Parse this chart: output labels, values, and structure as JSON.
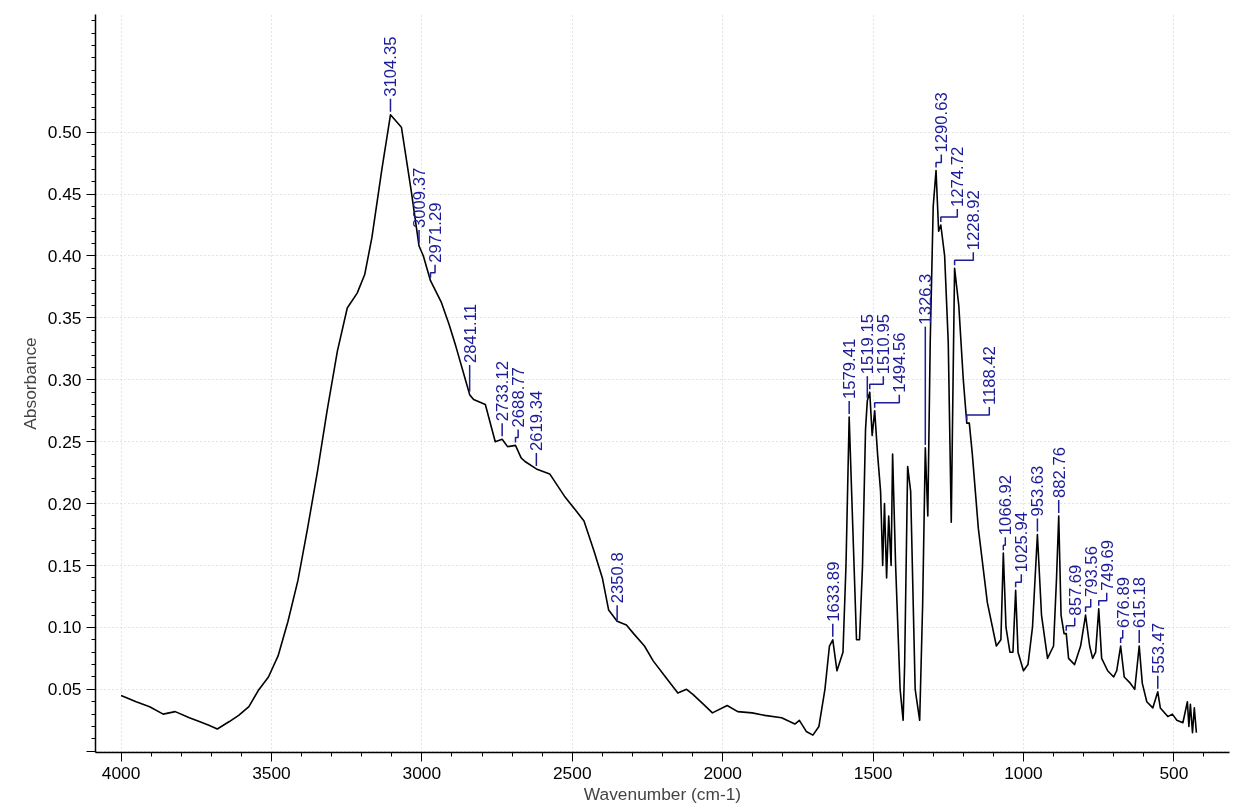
{
  "chart_data": {
    "type": "line",
    "xlabel": "Wavenumber (cm-1)",
    "ylabel": "Absorbance",
    "xlim": [
      4085,
      315
    ],
    "ylim": [
      -0.001,
      0.595
    ],
    "xticks": [
      4000,
      3500,
      3000,
      2500,
      2000,
      1500,
      1000,
      500
    ],
    "yticks": [
      {
        "value": 0,
        "label": null
      },
      {
        "value": 0.05,
        "label": "0.05"
      },
      {
        "value": 0.1,
        "label": "0.10"
      },
      {
        "value": 0.15,
        "label": "0.15"
      },
      {
        "value": 0.2,
        "label": "0.20"
      },
      {
        "value": 0.25,
        "label": "0.25"
      },
      {
        "value": 0.3,
        "label": "0.30"
      },
      {
        "value": 0.35,
        "label": "0.35"
      },
      {
        "value": 0.4,
        "label": "0.40"
      },
      {
        "value": 0.45,
        "label": "0.45"
      },
      {
        "value": 0.5,
        "label": "0.50"
      }
    ],
    "grid": true,
    "marker": "none",
    "line_style": "solid",
    "series": [
      {
        "color": "#000000",
        "x": [
          4000,
          3950,
          3905,
          3860,
          3820,
          3773,
          3740,
          3708,
          3680,
          3640,
          3609,
          3575,
          3544,
          3510,
          3478,
          3445,
          3412,
          3380,
          3347,
          3315,
          3281,
          3248,
          3215,
          3190,
          3166,
          3133,
          3104.35,
          3068,
          3035,
          3009.37,
          2995,
          2971.29,
          2963,
          2936,
          2910,
          2887,
          2854,
          2841.11,
          2828,
          2789,
          2756,
          2733.12,
          2715,
          2688.77,
          2670,
          2657,
          2619.34,
          2575,
          2526,
          2490,
          2461,
          2428,
          2400,
          2379,
          2350.8,
          2320,
          2296,
          2260,
          2231,
          2190,
          2149,
          2120,
          2099,
          2060,
          2034,
          1985,
          1950,
          1902,
          1860,
          1804,
          1760,
          1745,
          1722,
          1700,
          1680,
          1660,
          1645,
          1633.89,
          1620,
          1600,
          1590,
          1579.41,
          1570,
          1555,
          1545,
          1535,
          1525,
          1519.15,
          1510.95,
          1503,
          1494.56,
          1485,
          1475,
          1468,
          1462,
          1455,
          1448,
          1440,
          1435,
          1425,
          1410,
          1400,
          1395,
          1385,
          1375,
          1360,
          1345,
          1335,
          1326.3,
          1318,
          1310,
          1300,
          1290.63,
          1282,
          1274.72,
          1262,
          1250,
          1240,
          1234,
          1228.92,
          1215,
          1200,
          1188.42,
          1180,
          1170,
          1150,
          1120,
          1090,
          1075,
          1066.92,
          1058,
          1045,
          1035,
          1025.94,
          1018,
          1000,
          985,
          970,
          953.63,
          940,
          920,
          900,
          890,
          882.76,
          875,
          865,
          857.69,
          850,
          830,
          810,
          793.56,
          780,
          770,
          760,
          749.69,
          740,
          720,
          700,
          690,
          676.89,
          665,
          645,
          630,
          615.18,
          605,
          590,
          570,
          553.47,
          545,
          520,
          505,
          490,
          470,
          455,
          450,
          445,
          438,
          432,
          425
        ],
        "values": [
          0.045,
          0.04,
          0.036,
          0.03,
          0.032,
          0.027,
          0.024,
          0.021,
          0.018,
          0.024,
          0.029,
          0.036,
          0.049,
          0.06,
          0.077,
          0.105,
          0.138,
          0.18,
          0.226,
          0.275,
          0.323,
          0.358,
          0.37,
          0.385,
          0.415,
          0.47,
          0.514,
          0.504,
          0.452,
          0.408,
          0.4,
          0.38,
          0.376,
          0.363,
          0.345,
          0.327,
          0.299,
          0.288,
          0.284,
          0.28,
          0.25,
          0.252,
          0.246,
          0.247,
          0.237,
          0.234,
          0.228,
          0.224,
          0.206,
          0.195,
          0.186,
          0.162,
          0.14,
          0.114,
          0.105,
          0.102,
          0.095,
          0.085,
          0.073,
          0.06,
          0.047,
          0.05,
          0.046,
          0.037,
          0.031,
          0.037,
          0.032,
          0.031,
          0.029,
          0.027,
          0.022,
          0.025,
          0.016,
          0.013,
          0.02,
          0.05,
          0.085,
          0.09,
          0.065,
          0.08,
          0.15,
          0.27,
          0.2,
          0.09,
          0.09,
          0.15,
          0.26,
          0.283,
          0.29,
          0.255,
          0.275,
          0.24,
          0.21,
          0.15,
          0.2,
          0.14,
          0.19,
          0.15,
          0.24,
          0.15,
          0.05,
          0.025,
          0.07,
          0.23,
          0.21,
          0.05,
          0.025,
          0.12,
          0.245,
          0.19,
          0.33,
          0.44,
          0.469,
          0.42,
          0.425,
          0.4,
          0.33,
          0.185,
          0.3,
          0.39,
          0.36,
          0.3,
          0.265,
          0.265,
          0.24,
          0.18,
          0.12,
          0.085,
          0.09,
          0.16,
          0.1,
          0.08,
          0.08,
          0.13,
          0.08,
          0.065,
          0.07,
          0.1,
          0.175,
          0.11,
          0.075,
          0.085,
          0.14,
          0.19,
          0.11,
          0.095,
          0.095,
          0.075,
          0.07,
          0.085,
          0.11,
          0.085,
          0.075,
          0.08,
          0.115,
          0.075,
          0.065,
          0.06,
          0.065,
          0.085,
          0.06,
          0.055,
          0.05,
          0.085,
          0.055,
          0.04,
          0.035,
          0.048,
          0.035,
          0.028,
          0.03,
          0.025,
          0.023,
          0.04,
          0.02,
          0.038,
          0.015,
          0.035,
          0.015
        ]
      }
    ],
    "annotations": [
      {
        "text": "3104.35",
        "x": 3104.35,
        "y": 0.514
      },
      {
        "text": "3009.37",
        "x": 3009.37,
        "y": 0.408
      },
      {
        "text": "2971.29",
        "x": 2971.29,
        "y": 0.38
      },
      {
        "text": "2841.11",
        "x": 2841.11,
        "y": 0.288
      },
      {
        "text": "2733.12",
        "x": 2733.12,
        "y": 0.252
      },
      {
        "text": "2688.77",
        "x": 2688.77,
        "y": 0.247
      },
      {
        "text": "2619.34",
        "x": 2619.34,
        "y": 0.228
      },
      {
        "text": "2350.8",
        "x": 2350.8,
        "y": 0.102
      },
      {
        "text": "1633.89",
        "x": 1633.89,
        "y": 0.09
      },
      {
        "text": "1579.41",
        "x": 1579.41,
        "y": 0.27
      },
      {
        "text": "1519.15",
        "x": 1519.15,
        "y": 0.283
      },
      {
        "text": "1510.95",
        "x": 1510.95,
        "y": 0.29
      },
      {
        "text": "1494.56",
        "x": 1494.56,
        "y": 0.275
      },
      {
        "text": "1326.3",
        "x": 1326.3,
        "y": 0.245
      },
      {
        "text": "1290.63",
        "x": 1290.63,
        "y": 0.469
      },
      {
        "text": "1274.72",
        "x": 1274.72,
        "y": 0.425
      },
      {
        "text": "1228.92",
        "x": 1228.92,
        "y": 0.39
      },
      {
        "text": "1188.42",
        "x": 1188.42,
        "y": 0.265
      },
      {
        "text": "1066.92",
        "x": 1066.92,
        "y": 0.16
      },
      {
        "text": "1025.94",
        "x": 1025.94,
        "y": 0.13
      },
      {
        "text": "953.63",
        "x": 953.63,
        "y": 0.175
      },
      {
        "text": "882.76",
        "x": 882.76,
        "y": 0.19
      },
      {
        "text": "857.69",
        "x": 857.69,
        "y": 0.095
      },
      {
        "text": "793.56",
        "x": 793.56,
        "y": 0.11
      },
      {
        "text": "749.69",
        "x": 749.69,
        "y": 0.115
      },
      {
        "text": "676.89",
        "x": 676.89,
        "y": 0.085
      },
      {
        "text": "615.18",
        "x": 615.18,
        "y": 0.085
      },
      {
        "text": "553.47",
        "x": 553.47,
        "y": 0.048
      }
    ]
  }
}
